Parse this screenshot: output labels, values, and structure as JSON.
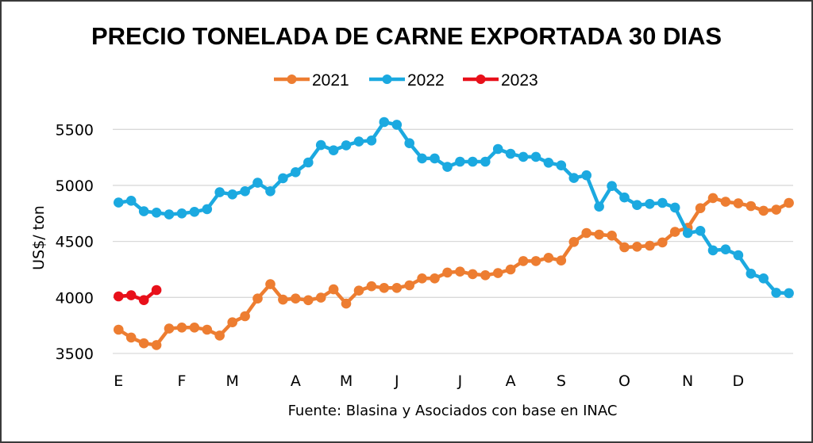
{
  "chart_data": {
    "type": "line",
    "title": "PRECIO TONELADA DE CARNE EXPORTADA 30 DIAS",
    "xlabel": "",
    "ylabel": "US$/ ton",
    "ylim": [
      3500,
      5500
    ],
    "yticks": [
      3500,
      4000,
      4500,
      5000,
      5500
    ],
    "grid": true,
    "legend": "top-center",
    "source": "Fuente: Blasina y Asociados con base en INAC",
    "x_month_labels": [
      {
        "index": 0,
        "label": "E"
      },
      {
        "index": 5,
        "label": "F"
      },
      {
        "index": 9,
        "label": "M"
      },
      {
        "index": 14,
        "label": "A"
      },
      {
        "index": 18,
        "label": "M"
      },
      {
        "index": 22,
        "label": "J"
      },
      {
        "index": 27,
        "label": "J"
      },
      {
        "index": 31,
        "label": "A"
      },
      {
        "index": 35,
        "label": "S"
      },
      {
        "index": 40,
        "label": "O"
      },
      {
        "index": 45,
        "label": "N"
      },
      {
        "index": 49,
        "label": "D"
      }
    ],
    "num_weeks": 54,
    "series": [
      {
        "name": "2021",
        "color": "#ED7D31",
        "values": [
          3712,
          3642,
          3590,
          3575,
          3722,
          3731,
          3731,
          3712,
          3660,
          3778,
          3832,
          3990,
          4118,
          3980,
          3990,
          3975,
          3998,
          4072,
          3945,
          4061,
          4100,
          4085,
          4085,
          4108,
          4170,
          4170,
          4222,
          4231,
          4208,
          4198,
          4217,
          4250,
          4325,
          4325,
          4354,
          4330,
          4495,
          4575,
          4561,
          4552,
          4448,
          4453,
          4462,
          4491,
          4585,
          4622,
          4797,
          4887,
          4854,
          4840,
          4816,
          4774,
          4783,
          4844
        ]
      },
      {
        "name": "2022",
        "color": "#1BA9E0",
        "values": [
          4847,
          4863,
          4769,
          4757,
          4741,
          4750,
          4764,
          4788,
          4939,
          4920,
          4948,
          5024,
          4948,
          5064,
          5118,
          5205,
          5360,
          5313,
          5358,
          5392,
          5401,
          5566,
          5542,
          5377,
          5241,
          5241,
          5165,
          5212,
          5212,
          5212,
          5325,
          5283,
          5255,
          5255,
          5203,
          5179,
          5066,
          5090,
          4811,
          4995,
          4892,
          4825,
          4835,
          4844,
          4802,
          4575,
          4594,
          4420,
          4429,
          4377,
          4212,
          4170,
          4042,
          4038
        ]
      },
      {
        "name": "2023",
        "color": "#E8101A",
        "values": [
          4009,
          4019,
          3976,
          4066
        ]
      }
    ]
  }
}
